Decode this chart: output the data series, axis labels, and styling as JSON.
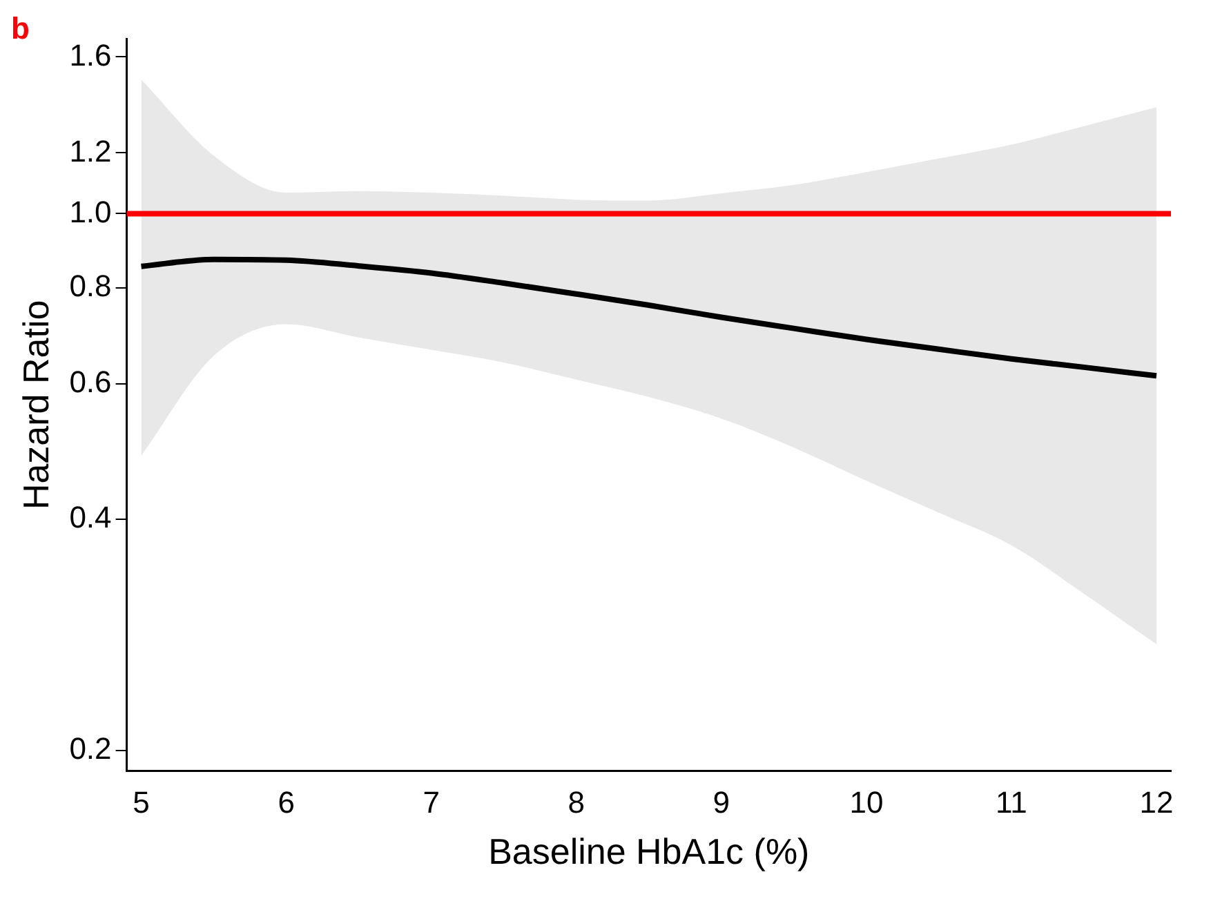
{
  "chart_data": {
    "type": "line",
    "xlabel": "Baseline HbA1c (%)",
    "ylabel": "Hazard Ratio",
    "annotations": [
      "b"
    ],
    "x": [
      5,
      5.5,
      6,
      6.5,
      7,
      7.5,
      8,
      8.5,
      9,
      9.5,
      10,
      10.5,
      11,
      11.5,
      12
    ],
    "series": [
      {
        "color": "#000000",
        "values": [
          0.854,
          0.872,
          0.87,
          0.855,
          0.837,
          0.812,
          0.786,
          0.76,
          0.733,
          0.709,
          0.686,
          0.666,
          0.647,
          0.631,
          0.615
        ],
        "lower": [
          0.484,
          0.653,
          0.718,
          0.69,
          0.665,
          0.64,
          0.608,
          0.577,
          0.541,
          0.496,
          0.449,
          0.408,
          0.37,
          0.32,
          0.275
        ],
        "upper": [
          1.496,
          1.19,
          1.065,
          1.07,
          1.065,
          1.055,
          1.043,
          1.04,
          1.063,
          1.09,
          1.133,
          1.18,
          1.23,
          1.3,
          1.376
        ]
      }
    ],
    "ref_lines": [
      {
        "axis": "y",
        "value": 1.0,
        "color": "#ff0000"
      }
    ],
    "log": "y",
    "grid": false,
    "legend": false,
    "xlim": [
      4.9,
      12.1
    ],
    "xticks": [
      5,
      6,
      7,
      8,
      9,
      10,
      11,
      12
    ],
    "ylim": [
      0.188,
      1.69
    ],
    "yticks": [
      0.2,
      0.4,
      0.6,
      0.8,
      {
        "value": 1.0,
        "label": "1.0"
      },
      1.2,
      1.6
    ]
  }
}
